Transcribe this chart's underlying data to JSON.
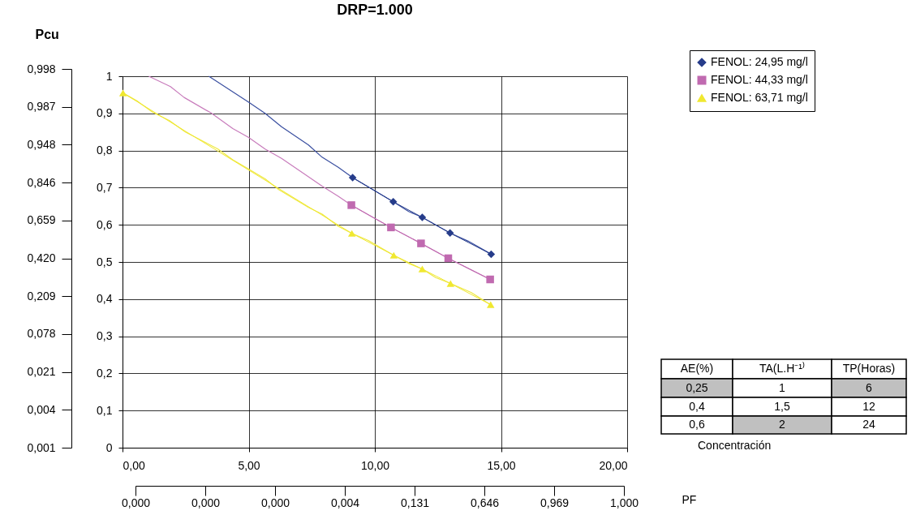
{
  "chart_data": {
    "type": "line",
    "title": "DRP=1.000",
    "y2label": "Pcu",
    "x2label": "PF",
    "xlim": [
      0,
      20
    ],
    "xticks": [
      {
        "value": 0,
        "label": "0,00"
      },
      {
        "value": 5,
        "label": "5,00"
      },
      {
        "value": 10,
        "label": "10,00"
      },
      {
        "value": 15,
        "label": "15,00"
      },
      {
        "value": 20,
        "label": "20,00"
      }
    ],
    "ylim": [
      0,
      1
    ],
    "yticks": [
      0,
      {
        "value": 0.1,
        "label": "0,1"
      },
      {
        "value": 0.2,
        "label": "0,2"
      },
      {
        "value": 0.3,
        "label": "0,3"
      },
      {
        "value": 0.4,
        "label": "0,4"
      },
      {
        "value": 0.5,
        "label": "0,5"
      },
      {
        "value": 0.6,
        "label": "0,6"
      },
      {
        "value": 0.7,
        "label": "0,7"
      },
      {
        "value": 0.8,
        "label": "0,8"
      },
      {
        "value": 0.9,
        "label": "0,9"
      },
      1
    ],
    "y2_categories": [
      "0,998",
      "0,987",
      "0,948",
      "0,846",
      "0,659",
      "0,420",
      "0,209",
      "0,078",
      "0,021",
      "0,004",
      "0,001"
    ],
    "grid": true,
    "legend": "top right",
    "annotations": [
      "AE(%)",
      "TA(L.H⁻¹⁾",
      "TP(Horas)",
      "0,25",
      "1",
      "6",
      "0,4",
      "1,5",
      "12",
      "0,6",
      "2",
      "24",
      "Concentración",
      "0,000",
      "0,000",
      "0,000",
      "0,004",
      "0,131",
      "0,646",
      "0,969",
      "1,000"
    ],
    "series": [
      {
        "name": "FENOL: 24,95 mg/l",
        "color": "#263c8a",
        "marker": "diamond",
        "x": [
          9.12,
          10.73,
          11.88,
          12.98,
          14.61
        ],
        "values": [
          0.727,
          0.662,
          0.62,
          0.578,
          0.521
        ]
      },
      {
        "name": "FENOL: 44,33 mg/l",
        "color": "#c06ab0",
        "marker": "square",
        "x": [
          9.07,
          10.64,
          11.83,
          12.91,
          14.57
        ],
        "values": [
          0.653,
          0.593,
          0.55,
          0.51,
          0.453
        ]
      },
      {
        "name": "FENOL: 63,71 mg/l",
        "color": "#f0e830",
        "marker": "triangle",
        "x": [
          0.02,
          9.09,
          10.75,
          11.88,
          13.0,
          14.59
        ],
        "values": [
          0.955,
          0.577,
          0.518,
          0.481,
          0.442,
          0.385
        ]
      },
      {
        "color": "#3a4fa0",
        "marker": "none",
        "x": [
          3.42,
          4.37,
          5.0,
          5.65,
          6.3,
          7.37,
          7.91,
          8.55,
          9.12,
          9.92,
          10.73,
          11.34,
          11.88,
          12.98,
          13.7,
          14.61
        ],
        "values": [
          1.0,
          0.958,
          0.93,
          0.9,
          0.864,
          0.815,
          0.782,
          0.755,
          0.727,
          0.695,
          0.662,
          0.636,
          0.62,
          0.578,
          0.556,
          0.521
        ]
      },
      {
        "color": "#c87cbc",
        "marker": "none",
        "x": [
          1.04,
          1.9,
          2.44,
          3.51,
          4.37,
          5.0,
          5.65,
          6.3,
          7.16,
          7.91,
          8.55,
          9.07,
          9.92,
          10.64,
          11.83,
          12.91,
          13.81,
          14.57
        ],
        "values": [
          1.0,
          0.972,
          0.943,
          0.901,
          0.859,
          0.835,
          0.804,
          0.779,
          0.739,
          0.704,
          0.677,
          0.653,
          0.62,
          0.593,
          0.55,
          0.51,
          0.479,
          0.453
        ]
      },
      {
        "color": "#eee840",
        "marker": "none",
        "x": [
          0.02,
          0.61,
          1.2,
          1.85,
          2.49,
          3.78,
          4.37,
          5.0,
          5.65,
          6.19,
          7.37,
          7.91,
          8.55,
          9.09,
          9.74,
          10.75,
          11.34,
          11.88,
          12.41,
          13.0,
          13.81,
          14.59
        ],
        "values": [
          0.955,
          0.932,
          0.903,
          0.881,
          0.85,
          0.804,
          0.775,
          0.75,
          0.724,
          0.695,
          0.647,
          0.629,
          0.596,
          0.577,
          0.558,
          0.518,
          0.496,
          0.481,
          0.458,
          0.442,
          0.418,
          0.385
        ]
      }
    ]
  }
}
